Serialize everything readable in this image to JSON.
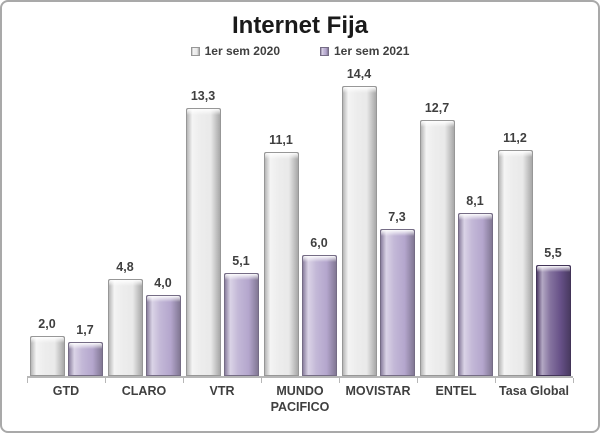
{
  "chart_data": {
    "type": "bar",
    "title": "Internet Fija",
    "categories": [
      "GTD",
      "CLARO",
      "VTR",
      "MUNDO PACIFICO",
      "MOVISTAR",
      "ENTEL",
      "Tasa Global"
    ],
    "series": [
      {
        "name": "1er sem 2020",
        "color": "#e9e9e9",
        "values": [
          2.0,
          4.8,
          13.3,
          11.1,
          14.4,
          12.7,
          11.2
        ],
        "labels": [
          "2,0",
          "4,8",
          "13,3",
          "11,1",
          "14,4",
          "12,7",
          "11,2"
        ]
      },
      {
        "name": "1er sem 2021",
        "color": "#b4a6cd",
        "values": [
          1.7,
          4.0,
          5.1,
          6.0,
          7.3,
          8.1,
          5.5
        ],
        "labels": [
          "1,7",
          "4,0",
          "5,1",
          "6,0",
          "7,3",
          "8,1",
          "5,5"
        ],
        "highlight": {
          "index": 6,
          "color": "#665087"
        }
      }
    ],
    "xlabel": "",
    "ylabel": "",
    "ylim": [
      0,
      14.4
    ],
    "grid": false,
    "legend_position": "top"
  },
  "style": {
    "frame_border": "#a9a9a9",
    "axis_color": "#b7b7b7",
    "text_color": "#3f3f3f",
    "title_color": "#1a1a1a"
  }
}
